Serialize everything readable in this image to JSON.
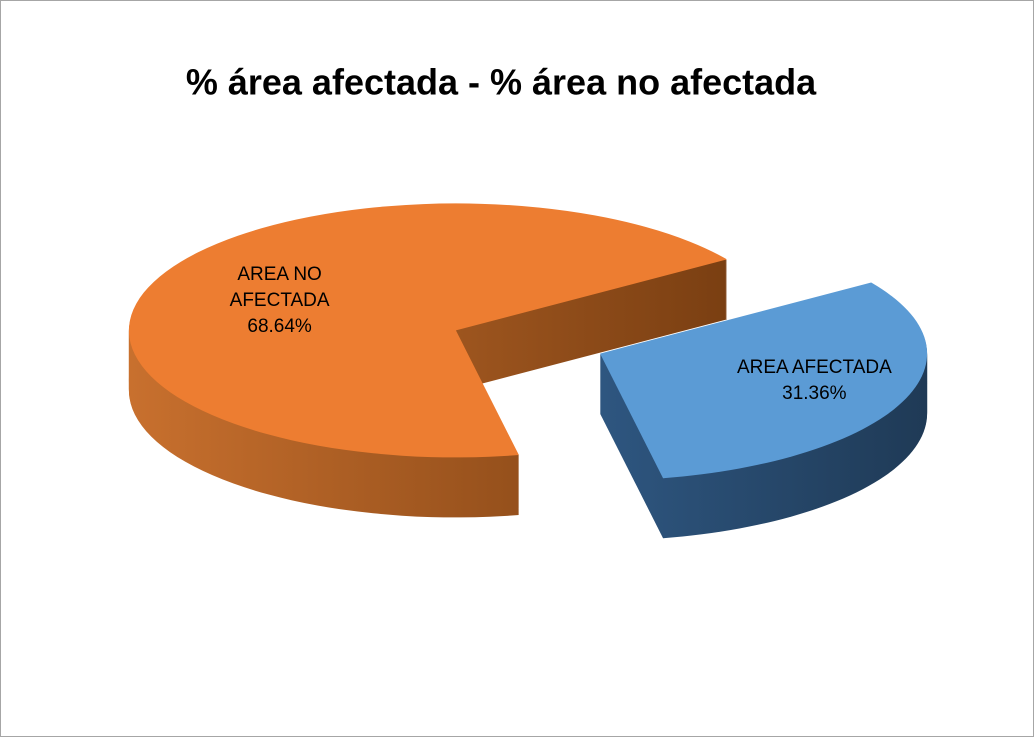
{
  "chart_data": {
    "type": "pie",
    "title": "% área afectada - % área no afectada",
    "categories": [
      "AREA AFECTADA",
      "AREA NO AFECTADA"
    ],
    "values": [
      31.36,
      68.64
    ],
    "value_labels": [
      "31.36%",
      "68.64%"
    ],
    "colors": [
      "#5b9bd5",
      "#ed7d31"
    ]
  }
}
